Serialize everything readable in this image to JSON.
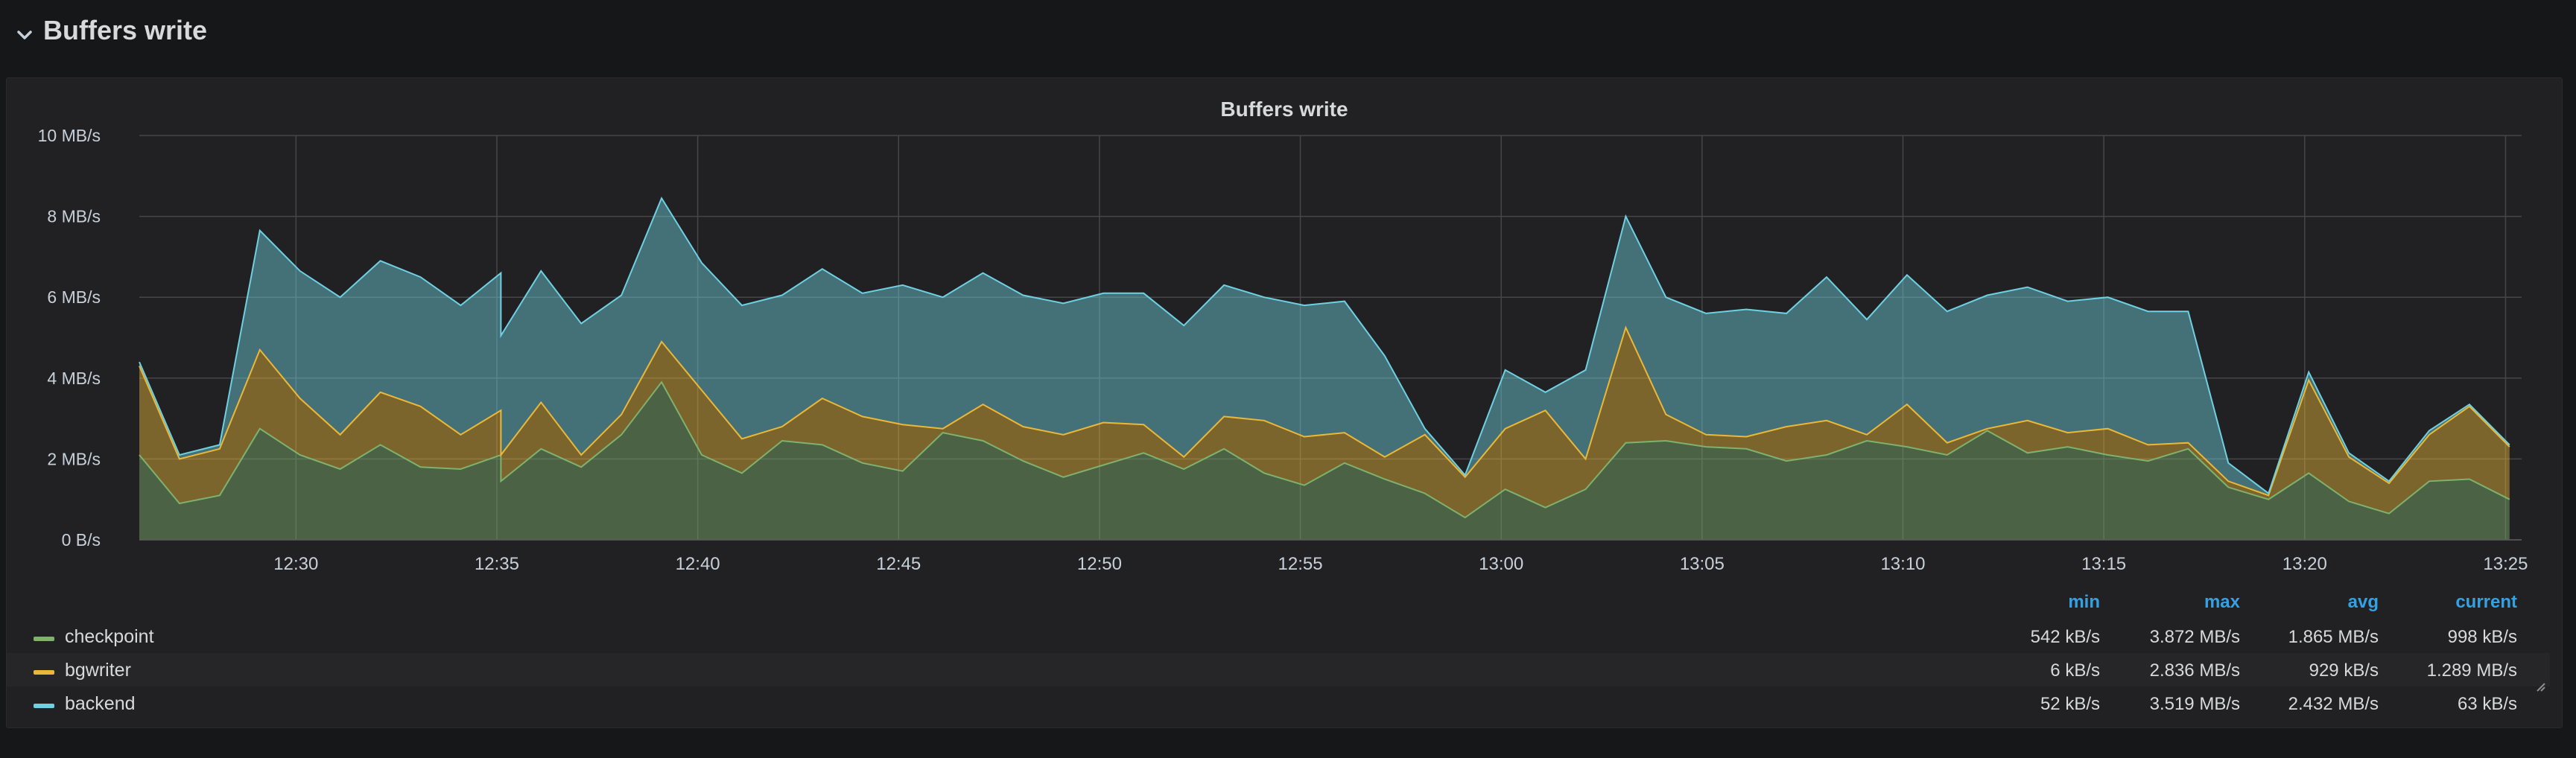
{
  "row": {
    "title": "Buffers write"
  },
  "panel": {
    "title": "Buffers write"
  },
  "colors": {
    "checkpoint": "#7eb26d",
    "bgwriter": "#eab839",
    "backend": "#6ed0e0",
    "header": "#33a2e5"
  },
  "legend": {
    "headers": {
      "min": "min",
      "max": "max",
      "avg": "avg",
      "current": "current"
    },
    "rows": [
      {
        "name": "checkpoint",
        "min": "542 kB/s",
        "max": "3.872 MB/s",
        "avg": "1.865 MB/s",
        "current": "998 kB/s"
      },
      {
        "name": "bgwriter",
        "min": "6 kB/s",
        "max": "2.836 MB/s",
        "avg": "929 kB/s",
        "current": "1.289 MB/s"
      },
      {
        "name": "backend",
        "min": "52 kB/s",
        "max": "3.519 MB/s",
        "avg": "2.432 MB/s",
        "current": "63 kB/s"
      }
    ]
  },
  "chart_data": {
    "type": "area",
    "stacked": true,
    "title": "Buffers write",
    "x_unit": "minutes",
    "ylim": [
      0,
      10
    ],
    "y_ticks": [
      "0 B/s",
      "2 MB/s",
      "4 MB/s",
      "6 MB/s",
      "8 MB/s",
      "10 MB/s"
    ],
    "x_ticks": [
      "12:30",
      "12:35",
      "12:40",
      "12:45",
      "12:50",
      "12:55",
      "13:00",
      "13:05",
      "13:10",
      "13:15",
      "13:20",
      "13:25"
    ],
    "x_tick_minutes": [
      30,
      35,
      40,
      45,
      50,
      55,
      60,
      65,
      70,
      75,
      80,
      85
    ],
    "x_range": [
      26.1,
      85.4
    ],
    "x": [
      26.1,
      27.1,
      28.1,
      29.1,
      30.1,
      31.1,
      32.1,
      33.1,
      34.1,
      35.1,
      35.1,
      36.1,
      37.1,
      38.1,
      39.1,
      40.1,
      41.1,
      42.1,
      43.1,
      44.1,
      45.1,
      46.1,
      47.1,
      48.1,
      49.1,
      50.1,
      51.1,
      52.1,
      53.1,
      54.1,
      55.1,
      56.1,
      57.1,
      58.1,
      59.1,
      60.1,
      61.1,
      62.1,
      63.1,
      64.1,
      65.1,
      66.1,
      67.1,
      68.1,
      69.1,
      70.1,
      71.1,
      72.1,
      73.1,
      74.1,
      75.1,
      76.1,
      77.1,
      78.1,
      79.1,
      80.1,
      81.1,
      82.1,
      83.1,
      84.1,
      85.1
    ],
    "series": [
      {
        "name": "checkpoint",
        "values": [
          2.1,
          0.9,
          1.1,
          2.75,
          2.1,
          1.75,
          2.35,
          1.8,
          1.75,
          2.1,
          1.45,
          2.25,
          1.8,
          2.6,
          3.9,
          2.1,
          1.65,
          2.45,
          2.35,
          1.9,
          1.7,
          2.65,
          2.45,
          1.95,
          1.55,
          1.85,
          2.15,
          1.75,
          2.25,
          1.65,
          1.35,
          1.9,
          1.5,
          1.15,
          0.55,
          1.25,
          0.8,
          1.25,
          2.4,
          2.45,
          2.3,
          2.25,
          1.95,
          2.1,
          2.45,
          2.3,
          2.1,
          2.7,
          2.15,
          2.3,
          2.1,
          1.95,
          2.25,
          1.3,
          1.0,
          1.65,
          0.95,
          0.65,
          1.45,
          1.5,
          1.0
        ]
      },
      {
        "name": "bgwriter",
        "values": [
          2.2,
          1.1,
          1.15,
          1.95,
          1.4,
          0.85,
          1.3,
          1.5,
          0.85,
          1.1,
          0.65,
          1.15,
          0.3,
          0.5,
          1.0,
          1.6,
          0.85,
          0.35,
          1.15,
          1.15,
          1.15,
          0.1,
          0.9,
          0.85,
          1.05,
          1.05,
          0.7,
          0.3,
          0.8,
          1.3,
          1.2,
          0.75,
          0.55,
          1.45,
          1.0,
          1.5,
          2.4,
          0.75,
          2.85,
          0.65,
          0.3,
          0.3,
          0.85,
          0.85,
          0.15,
          1.05,
          0.3,
          0.05,
          0.8,
          0.35,
          0.65,
          0.4,
          0.15,
          0.15,
          0.1,
          2.3,
          1.1,
          0.75,
          1.15,
          1.8,
          1.3
        ]
      },
      {
        "name": "backend",
        "values": [
          0.1,
          0.1,
          0.1,
          2.95,
          3.15,
          3.4,
          3.25,
          3.2,
          3.2,
          3.4,
          2.95,
          3.25,
          3.25,
          2.95,
          3.55,
          3.15,
          3.3,
          3.25,
          3.2,
          3.05,
          3.45,
          3.25,
          3.25,
          3.25,
          3.25,
          3.2,
          3.25,
          3.25,
          3.25,
          3.05,
          3.25,
          3.25,
          2.5,
          0.15,
          0.05,
          1.45,
          0.45,
          2.2,
          2.75,
          2.9,
          3.0,
          3.15,
          2.8,
          3.55,
          2.85,
          3.2,
          3.25,
          3.3,
          3.3,
          3.25,
          3.25,
          3.3,
          3.25,
          0.45,
          0.05,
          0.2,
          0.1,
          0.05,
          0.1,
          0.05,
          0.05
        ]
      }
    ],
    "legend_position": "bottom",
    "grid": true
  }
}
